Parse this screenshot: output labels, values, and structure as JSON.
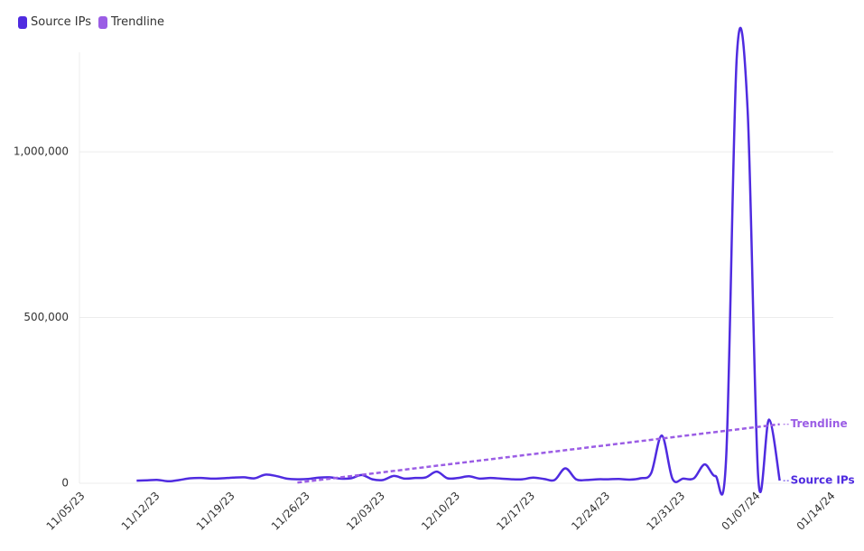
{
  "chart_data": {
    "type": "line",
    "x": [
      "11/10/23",
      "11/11/23",
      "11/12/23",
      "11/13/23",
      "11/14/23",
      "11/15/23",
      "11/16/23",
      "11/17/23",
      "11/18/23",
      "11/19/23",
      "11/20/23",
      "11/21/23",
      "11/22/23",
      "11/23/23",
      "11/24/23",
      "11/25/23",
      "11/26/23",
      "11/27/23",
      "11/28/23",
      "11/29/23",
      "11/30/23",
      "12/01/23",
      "12/02/23",
      "12/03/23",
      "12/04/23",
      "12/05/23",
      "12/06/23",
      "12/07/23",
      "12/08/23",
      "12/09/23",
      "12/10/23",
      "12/11/23",
      "12/12/23",
      "12/13/23",
      "12/14/23",
      "12/15/23",
      "12/16/23",
      "12/17/23",
      "12/18/23",
      "12/19/23",
      "12/20/23",
      "12/21/23",
      "12/22/23",
      "12/23/23",
      "12/24/23",
      "12/25/23",
      "12/26/23",
      "12/27/23",
      "12/28/23",
      "12/29/23",
      "12/30/23",
      "12/31/23",
      "01/01/24",
      "01/02/24",
      "01/03/24",
      "01/04/24",
      "01/05/24",
      "01/06/24",
      "01/07/24",
      "01/08/24",
      "01/09/24"
    ],
    "series": [
      {
        "name": "Source IPs",
        "color": "#4f2be0",
        "values": [
          8000,
          9000,
          10000,
          6000,
          10000,
          15000,
          16000,
          14000,
          15000,
          17000,
          18000,
          15000,
          26000,
          22000,
          14000,
          12000,
          13000,
          17000,
          18000,
          14000,
          15000,
          25000,
          12000,
          10000,
          22000,
          14000,
          16000,
          18000,
          35000,
          15000,
          16000,
          21000,
          14000,
          16000,
          14000,
          12000,
          12000,
          17000,
          13000,
          10000,
          45000,
          12000,
          10000,
          12000,
          12000,
          13000,
          11000,
          15000,
          30000,
          144000,
          13000,
          14000,
          15000,
          57000,
          22000,
          75000,
          1290000,
          1130000,
          15000,
          192000,
          8000
        ]
      },
      {
        "name": "Trendline",
        "color": "#9b5de5",
        "dashed": true,
        "x": [
          "11/25/23",
          "01/09/24"
        ],
        "values": [
          2000,
          178000
        ]
      }
    ],
    "xlim": [
      "11/05/23",
      "01/14/24"
    ],
    "xticks": [
      "11/05/23",
      "11/12/23",
      "11/19/23",
      "11/26/23",
      "12/03/23",
      "12/10/23",
      "12/17/23",
      "12/24/23",
      "12/31/23",
      "01/07/24",
      "01/14/24"
    ],
    "ylim": [
      0,
      1300000
    ],
    "yticks": [
      0,
      {
        "value": 500000,
        "label": "500,000"
      },
      {
        "value": 1000000,
        "label": "1,000,000"
      }
    ],
    "grid": true,
    "legend": "top-left"
  }
}
